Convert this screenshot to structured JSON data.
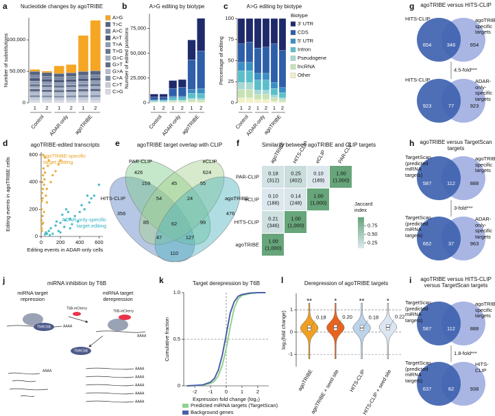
{
  "chart_data": [
    {
      "panel": "a",
      "type": "bar",
      "stacked": true,
      "title": "Nucleotide changes by agoTRIBE",
      "ylabel": "Number of substitutions",
      "categories": [
        "1",
        "2",
        "1",
        "2",
        "1",
        "2"
      ],
      "groups": [
        "Control",
        "ADAR-only",
        "agoTRIBE"
      ],
      "ylim": [
        0,
        135000
      ],
      "yticks": [
        0,
        {
          "value": 50000,
          "label": "50,000"
        },
        {
          "value": 100000,
          "label": "100,000"
        }
      ],
      "legend": "right",
      "series": [
        {
          "name": "A>G",
          "color": "#f5a623",
          "values": [
            3000,
            2500,
            12000,
            13000,
            57000,
            80000
          ]
        },
        {
          "name": "T>C",
          "color": "#55637f",
          "values": [
            6200,
            6000,
            5800,
            6000,
            6300,
            6400
          ]
        },
        {
          "name": "A>C",
          "color": "#7886a2",
          "values": [
            4500,
            4300,
            4200,
            4300,
            4500,
            4600
          ]
        },
        {
          "name": "A>T",
          "color": "#4b5978",
          "values": [
            4800,
            4600,
            4400,
            4500,
            4700,
            4800
          ]
        },
        {
          "name": "T>A",
          "color": "#8e9bb4",
          "values": [
            4700,
            4500,
            4300,
            4400,
            4600,
            4700
          ]
        },
        {
          "name": "T>G",
          "color": "#66748f",
          "values": [
            4300,
            4100,
            4000,
            4100,
            4300,
            4400
          ]
        },
        {
          "name": "G>C",
          "color": "#a3aec3",
          "values": [
            3600,
            3500,
            3400,
            3500,
            3600,
            3700
          ]
        },
        {
          "name": "G>T",
          "color": "#5d6a86",
          "values": [
            4200,
            4000,
            3900,
            4000,
            4200,
            4300
          ]
        },
        {
          "name": "G>A",
          "color": "#b3bccf",
          "values": [
            5200,
            5000,
            4900,
            5000,
            5200,
            5300
          ]
        },
        {
          "name": "C>A",
          "color": "#8190a9",
          "values": [
            4000,
            3800,
            3700,
            3800,
            4000,
            4100
          ]
        },
        {
          "name": "C>T",
          "color": "#c4cad8",
          "values": [
            5000,
            4800,
            4700,
            4800,
            5000,
            5100
          ]
        },
        {
          "name": "C>G",
          "color": "#d6dae3",
          "values": [
            3500,
            3400,
            3300,
            3400,
            3500,
            3600
          ]
        }
      ]
    },
    {
      "panel": "b",
      "type": "bar",
      "stacked": true,
      "title": "A>G editing by biotype",
      "ylabel": "Number of edited positions",
      "categories": [
        "1",
        "2",
        "1",
        "2",
        "1",
        "2"
      ],
      "groups": [
        "Control",
        "ADAR-only",
        "agoTRIBE"
      ],
      "ylim": [
        0,
        90000
      ],
      "yticks": [
        0,
        {
          "value": 25000,
          "label": "25,000"
        },
        {
          "value": 50000,
          "label": "50,000"
        },
        {
          "value": 75000,
          "label": "75,000"
        }
      ],
      "legend": "none",
      "series": [
        {
          "name": "3′ UTR",
          "color": "#1f2a6b",
          "values": [
            3000,
            3000,
            8000,
            8000,
            20000,
            33000
          ]
        },
        {
          "name": "CDS",
          "color": "#2e5fa8",
          "values": [
            3000,
            3000,
            8000,
            9000,
            30000,
            38000
          ]
        },
        {
          "name": "5′ UTR",
          "color": "#3b8fc2",
          "values": [
            500,
            500,
            1500,
            1500,
            4000,
            5000
          ]
        },
        {
          "name": "Intron",
          "color": "#5bbfc9",
          "values": [
            1000,
            1000,
            2500,
            2500,
            5000,
            5000
          ]
        },
        {
          "name": "Pseudogene",
          "color": "#a6d9d4",
          "values": [
            400,
            400,
            800,
            800,
            1500,
            1600
          ]
        },
        {
          "name": "lncRNA",
          "color": "#c7e3b4",
          "values": [
            600,
            600,
            1200,
            1200,
            2000,
            2000
          ]
        },
        {
          "name": "Other",
          "color": "#f3f0c4",
          "values": [
            300,
            300,
            500,
            500,
            1000,
            700
          ]
        }
      ]
    },
    {
      "panel": "c",
      "type": "bar",
      "stacked": true,
      "title": "A>G editing by biotype",
      "ylabel": "Percentage of editing",
      "categories": [
        "1",
        "2",
        "1",
        "2",
        "1",
        "2"
      ],
      "groups": [
        "Control",
        "ADAR-only",
        "agoTRIBE"
      ],
      "ylim": [
        0,
        100
      ],
      "yticks": [
        0,
        25,
        50,
        75,
        100
      ],
      "legend": "right",
      "legend_title": "Biotype",
      "series": [
        {
          "name": "3′ UTR",
          "color": "#1f2a6b",
          "values": [
            30,
            28,
            35,
            34,
            30,
            38
          ]
        },
        {
          "name": "CDS",
          "color": "#2e5fa8",
          "values": [
            22,
            24,
            30,
            31,
            46,
            44
          ]
        },
        {
          "name": "5′ UTR",
          "color": "#3b8fc2",
          "values": [
            10,
            10,
            8,
            8,
            7,
            6
          ]
        },
        {
          "name": "Intron",
          "color": "#5bbfc9",
          "values": [
            14,
            14,
            12,
            12,
            8,
            6
          ]
        },
        {
          "name": "Pseudogene",
          "color": "#a6d9d4",
          "values": [
            8,
            8,
            5,
            5,
            3,
            2
          ]
        },
        {
          "name": "lncRNA",
          "color": "#c7e3b4",
          "values": [
            10,
            10,
            6,
            6,
            4,
            3
          ]
        },
        {
          "name": "Other",
          "color": "#f3f0c4",
          "values": [
            6,
            6,
            4,
            4,
            2,
            1
          ]
        }
      ]
    },
    {
      "panel": "d",
      "type": "scatter",
      "title": "agoTRIBE-edited transcripts",
      "xlabel": "Editing events in ADAR-only cells",
      "ylabel": "Editing events in agoTRIBE cells",
      "xlim": [
        0,
        640
      ],
      "ylim": [
        0,
        620
      ],
      "xticks": [
        0,
        200,
        400,
        600
      ],
      "yticks": [
        0,
        200,
        400,
        600
      ],
      "annotations": [
        {
          "text": "agoTRIBE-specific target editing",
          "color": "#e8a020"
        },
        {
          "text": "ADAR-only-specific target editing",
          "color": "#2bb0c0"
        }
      ],
      "series": [
        {
          "color": "#e8a020",
          "x": [
            2,
            5,
            8,
            10,
            12,
            15,
            18,
            20,
            25,
            30,
            35,
            40,
            50,
            60,
            70,
            80,
            100,
            120,
            150,
            180,
            200,
            20,
            40,
            60,
            30,
            5,
            10,
            15,
            20,
            8
          ],
          "values": [
            120,
            200,
            260,
            320,
            400,
            280,
            350,
            450,
            500,
            380,
            420,
            470,
            300,
            350,
            520,
            560,
            400,
            450,
            480,
            530,
            560,
            600,
            580,
            250,
            180,
            60,
            90,
            150,
            100,
            40
          ]
        },
        {
          "color": "#2bb0c0",
          "x": [
            100,
            150,
            200,
            250,
            300,
            350,
            400,
            450,
            500,
            550,
            600,
            120,
            180,
            240,
            320,
            380,
            280,
            160,
            220,
            260,
            420,
            480,
            520,
            200,
            300,
            60,
            80,
            50,
            90,
            40
          ],
          "values": [
            60,
            80,
            100,
            120,
            130,
            150,
            180,
            200,
            250,
            300,
            380,
            20,
            40,
            70,
            90,
            110,
            180,
            110,
            160,
            200,
            230,
            300,
            280,
            30,
            60,
            20,
            40,
            30,
            10,
            15
          ]
        }
      ]
    },
    {
      "panel": "e",
      "type": "venn",
      "title": "agoTRIBE target overlap with CLIP",
      "sets": [
        "HITS-CLIP",
        "PAR-CLIP",
        "eCLIP",
        "agoTRIBE"
      ],
      "colors": [
        "#5b83c4",
        "#7fc98a",
        "#a7d08c",
        "#4fb3bf"
      ],
      "values": [
        356,
        426,
        624,
        476,
        159,
        45,
        55,
        54,
        24,
        85,
        62,
        99,
        47,
        127,
        110
      ]
    },
    {
      "panel": "f",
      "type": "heatmap",
      "title": "Similarity between agoTRIBE and CLIP targets",
      "rows": [
        "PAR-CLIP",
        "eCLIP",
        "HITS-CLIP",
        "agoTRIBE"
      ],
      "columns": [
        "agoTRIBE",
        "HITS-CLIP",
        "eCLIP",
        "PAR-CLIP"
      ],
      "values": [
        [
          0.18,
          0.25,
          0.1,
          1.0
        ],
        [
          0.1,
          0.14,
          1.0,
          null
        ],
        [
          0.21,
          1.0,
          null,
          null
        ],
        [
          1.0,
          null,
          null,
          null
        ]
      ],
      "value_labels": [
        [
          "0.18",
          "0.25",
          "0.10",
          "1.00"
        ],
        [
          "0.10",
          "0.14",
          "1.00",
          null
        ],
        [
          "0.21",
          "1.00",
          null,
          null
        ],
        [
          "1.00",
          null,
          null,
          null
        ]
      ],
      "counts": [
        [
          312,
          402,
          189,
          1000
        ],
        [
          188,
          248,
          1000,
          null
        ],
        [
          346,
          1000,
          null,
          null
        ],
        [
          1000,
          null,
          null,
          null
        ]
      ],
      "count_labels": [
        [
          "(312)",
          "(402)",
          "(189)",
          "(1,000)"
        ],
        [
          "(188)",
          "(248)",
          "(1,000)",
          null
        ],
        [
          "(346)",
          "(1,000)",
          null,
          null
        ],
        [
          "(1,000)",
          null,
          null,
          null
        ]
      ],
      "colorbar_label": "Jaccard index",
      "clim": [
        0.1,
        1.0
      ],
      "colors": [
        "#dde8ee",
        "#67a57a"
      ],
      "cticks": [
        {
          "value": 0.25,
          "label": "0.25"
        },
        {
          "value": 0.5,
          "label": "0.50"
        },
        {
          "value": 0.75,
          "label": "0.75"
        }
      ]
    },
    {
      "panel": "g",
      "type": "venn2",
      "title": "agoTRIBE versus HITS-CLIP",
      "annotation": "4.5-fold***",
      "colors": [
        "#3f63b0",
        "#a9b5e3"
      ],
      "pairs": [
        {
          "left": "HITS-CLIP",
          "right": "agoTRIBE-specific targets",
          "values": [
            654,
            346,
            654
          ]
        },
        {
          "left": "HITS-CLIP",
          "right": "ADAR-only-specific targets",
          "values": [
            923,
            77,
            923
          ]
        }
      ]
    },
    {
      "panel": "h",
      "type": "venn2",
      "title": "agoTRIBE versus TargetScan targets",
      "annotation": "3-fold***",
      "colors": [
        "#3f63b0",
        "#a9b5e3"
      ],
      "pairs": [
        {
          "left": "TargetScan (predicted miRNA targets)",
          "right": "agoTRIBE-specific targets",
          "values": [
            587,
            112,
            888
          ]
        },
        {
          "left": "TargetScan (predicted miRNA targets)",
          "right": "ADAR-only-specific targets",
          "values": [
            662,
            37,
            963
          ]
        }
      ]
    },
    {
      "panel": "i",
      "type": "venn2",
      "title": "agoTRIBE versus HITS-CLIP versus TargetScan targets",
      "annotation": "1.8-fold***",
      "colors": [
        "#3f63b0",
        "#a9b5e3"
      ],
      "pairs": [
        {
          "left": "TargetScan (predicted miRNA targets)",
          "right": "agoTRIBE-specific targets",
          "values": [
            587,
            112,
            888
          ]
        },
        {
          "left": "TargetScan (predicted miRNA targets)",
          "right": "HITS-CLIP",
          "values": [
            637,
            62,
            938
          ]
        }
      ]
    },
    {
      "panel": "k",
      "type": "line",
      "title": "Target derepression by T6B",
      "xlabel": "Expression fold change (log₂)",
      "ylabel": "Cumulative fraction",
      "x": [
        -2.5,
        -2,
        -1.5,
        -1,
        -0.75,
        -0.5,
        -0.25,
        0,
        0.25,
        0.5,
        0.75,
        1,
        1.5,
        2,
        2.5
      ],
      "xlim": [
        -2.7,
        2.7
      ],
      "ylim": [
        0,
        1
      ],
      "xticks": [
        -2,
        -1,
        0,
        1,
        2
      ],
      "yticks": [
        0,
        0.5,
        {
          "value": 1,
          "label": "1.0"
        }
      ],
      "vline": 0,
      "hline": 0.5,
      "legend": "bottom",
      "series": [
        {
          "name": "Predicted miRNA targets (TargetScan)",
          "color": "#8fd18f",
          "values": [
            0,
            0.003,
            0.008,
            0.025,
            0.05,
            0.11,
            0.22,
            0.4,
            0.63,
            0.83,
            0.93,
            0.97,
            0.99,
            1,
            1
          ]
        },
        {
          "name": "Background genes",
          "color": "#4b5ea6",
          "values": [
            0,
            0.005,
            0.01,
            0.04,
            0.08,
            0.17,
            0.33,
            0.55,
            0.78,
            0.9,
            0.96,
            0.98,
            0.995,
            1,
            1
          ]
        }
      ]
    },
    {
      "panel": "l",
      "type": "violin",
      "title": "Derepression of agoTRIBE targets",
      "ylabel": "log₂(fold change)",
      "categories": [
        "agoTRIBE",
        "agoTRIBE + seed site",
        "HITS-CLIP",
        "HITS-CLIP + seed site"
      ],
      "colors": [
        "#f0a020",
        "#e8641e",
        "#bcd3ea",
        "#dbe6f2"
      ],
      "medians": [
        0.18,
        0.2,
        0.18,
        0.22
      ],
      "value_labels": [
        "0.18",
        "0.20",
        "0.18",
        "0.22"
      ],
      "significance": [
        "**",
        "*",
        "**",
        "*"
      ],
      "ylim": [
        -1.55,
        1.74
      ],
      "yticks": [
        -1,
        0,
        1
      ],
      "grid": true
    }
  ],
  "diagram": {
    "panel": "j",
    "title": "miRNA inhibition by T6B",
    "left_label": "miRNA target repression",
    "right_label": "miRNA target derepression",
    "t6b": "T6B-mCherry",
    "tnrc6b": "TNRC6B",
    "polya": "AAAA"
  }
}
